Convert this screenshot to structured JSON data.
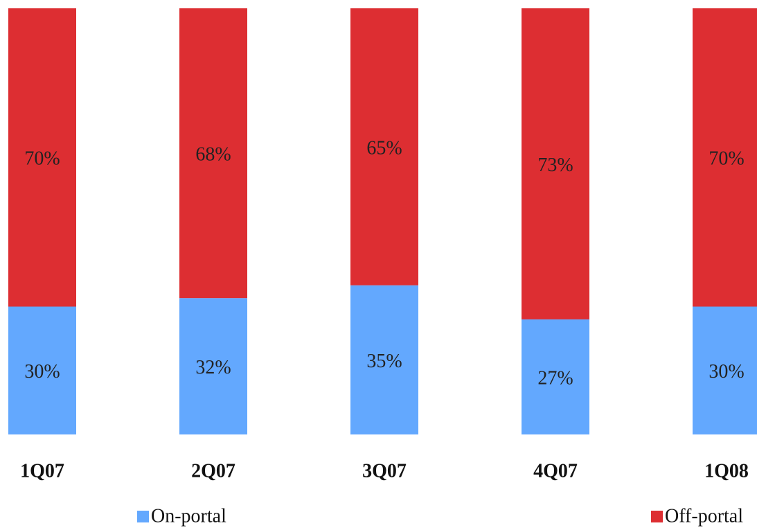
{
  "chart_data": {
    "type": "stacked_bar",
    "categories": [
      "1Q07",
      "2Q07",
      "3Q07",
      "4Q07",
      "1Q08"
    ],
    "series": [
      {
        "name": "On-portal",
        "color": "#63a8fe",
        "values": [
          30,
          32,
          35,
          27,
          30
        ],
        "value_labels": [
          "30%",
          "32%",
          "35%",
          "27%",
          "30%"
        ]
      },
      {
        "name": "Off-portal",
        "color": "#dd2e32",
        "values": [
          70,
          68,
          65,
          73,
          70
        ],
        "value_labels": [
          "70%",
          "68%",
          "65%",
          "73%",
          "70%"
        ]
      }
    ]
  }
}
